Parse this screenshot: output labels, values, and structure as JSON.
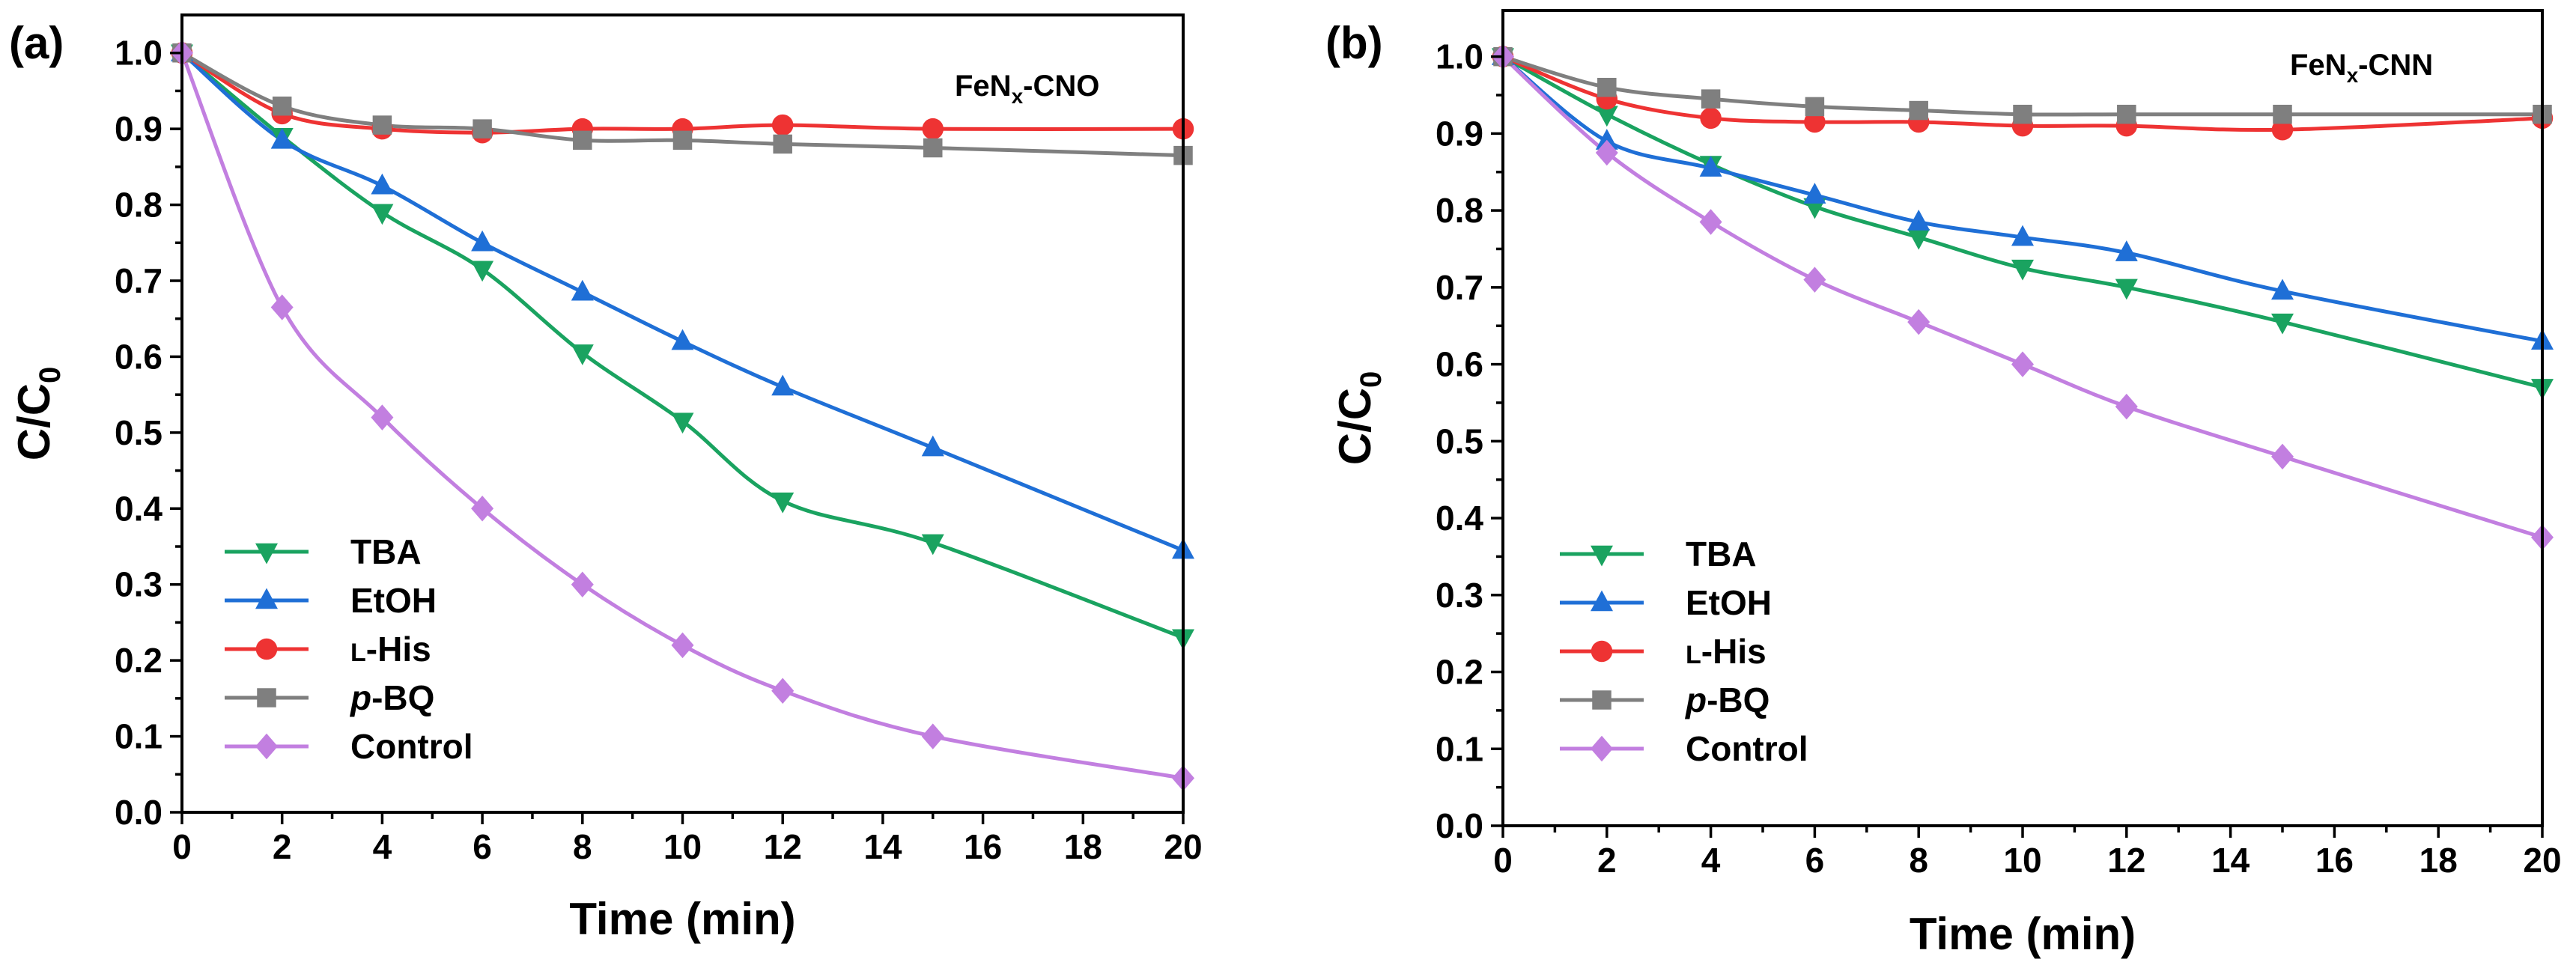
{
  "chart_data": [
    {
      "type": "line",
      "panel_letter": "(a)",
      "label_main": "FeN",
      "label_sub": "x",
      "label_suffix": "-CNO",
      "xlabel": "Time (min)",
      "ylabel_main": "C/C",
      "ylabel_sub": "0",
      "xlim": [
        0,
        20
      ],
      "ylim": [
        0,
        1.05
      ],
      "xticks": [
        0,
        2,
        4,
        6,
        8,
        10,
        12,
        14,
        16,
        18,
        20
      ],
      "xtick_labels": [
        "0",
        "2",
        "4",
        "6",
        "8",
        "10",
        "12",
        "14",
        "16",
        "18",
        "20"
      ],
      "yticks": [
        0,
        0.1,
        0.2,
        0.3,
        0.4,
        0.5,
        0.6,
        0.7,
        0.8,
        0.9,
        1.0
      ],
      "ytick_labels": [
        "0.0",
        "0.1",
        "0.2",
        "0.3",
        "0.4",
        "0.5",
        "0.6",
        "0.7",
        "0.8",
        "0.9",
        "1.0"
      ],
      "legend_position": "bottom-left",
      "x": [
        0,
        2,
        4,
        6,
        8,
        10,
        12,
        15,
        20
      ],
      "series": [
        {
          "name": "TBA",
          "color": "#1aa360",
          "marker": "triangle-down",
          "values": [
            1.0,
            0.89,
            0.79,
            0.715,
            0.605,
            0.515,
            0.41,
            0.355,
            0.23
          ]
        },
        {
          "name": "EtOH",
          "color": "#1f6fd6",
          "marker": "triangle-up",
          "values": [
            1.0,
            0.885,
            0.825,
            0.75,
            0.685,
            0.62,
            0.56,
            0.48,
            0.345
          ]
        },
        {
          "name": "L-His",
          "color": "#ee3333",
          "marker": "circle",
          "values": [
            1.0,
            0.92,
            0.9,
            0.895,
            0.9,
            0.9,
            0.905,
            0.9,
            0.9
          ]
        },
        {
          "name": "p-BQ",
          "color": "#7f7f7f",
          "marker": "square",
          "values": [
            1.0,
            0.93,
            0.905,
            0.9,
            0.885,
            0.885,
            0.88,
            0.875,
            0.865
          ]
        },
        {
          "name": "Control",
          "color": "#c27fe0",
          "marker": "diamond",
          "values": [
            1.0,
            0.665,
            0.52,
            0.4,
            0.3,
            0.22,
            0.16,
            0.1,
            0.045
          ]
        }
      ]
    },
    {
      "type": "line",
      "panel_letter": "(b)",
      "label_main": "FeN",
      "label_sub": "x",
      "label_suffix": "-CNN",
      "xlabel": "Time (min)",
      "ylabel_main": "C/C",
      "ylabel_sub": "0",
      "xlim": [
        0,
        20
      ],
      "ylim": [
        0,
        1.06
      ],
      "xticks": [
        0,
        2,
        4,
        6,
        8,
        10,
        12,
        14,
        16,
        18,
        20
      ],
      "xtick_labels": [
        "0",
        "2",
        "4",
        "6",
        "8",
        "10",
        "12",
        "14",
        "16",
        "18",
        "20"
      ],
      "yticks": [
        0,
        0.1,
        0.2,
        0.3,
        0.4,
        0.5,
        0.6,
        0.7,
        0.8,
        0.9,
        1.0
      ],
      "ytick_labels": [
        "0.0",
        "0.1",
        "0.2",
        "0.3",
        "0.4",
        "0.5",
        "0.6",
        "0.7",
        "0.8",
        "0.9",
        "1.0"
      ],
      "legend_position": "bottom-left",
      "x": [
        0,
        2,
        4,
        6,
        8,
        10,
        12,
        15,
        20
      ],
      "series": [
        {
          "name": "TBA",
          "color": "#1aa360",
          "marker": "triangle-down",
          "values": [
            1.0,
            0.925,
            0.86,
            0.805,
            0.765,
            0.725,
            0.7,
            0.655,
            0.57
          ]
        },
        {
          "name": "EtOH",
          "color": "#1f6fd6",
          "marker": "triangle-up",
          "values": [
            1.0,
            0.89,
            0.855,
            0.82,
            0.785,
            0.765,
            0.745,
            0.695,
            0.63
          ]
        },
        {
          "name": "L-His",
          "color": "#ee3333",
          "marker": "circle",
          "values": [
            1.0,
            0.945,
            0.92,
            0.915,
            0.915,
            0.91,
            0.91,
            0.905,
            0.92
          ]
        },
        {
          "name": "p-BQ",
          "color": "#7f7f7f",
          "marker": "square",
          "values": [
            1.0,
            0.96,
            0.945,
            0.935,
            0.93,
            0.925,
            0.925,
            0.925,
            0.925
          ]
        },
        {
          "name": "Control",
          "color": "#c27fe0",
          "marker": "diamond",
          "values": [
            1.0,
            0.875,
            0.785,
            0.71,
            0.655,
            0.6,
            0.545,
            0.48,
            0.375
          ]
        }
      ]
    }
  ]
}
